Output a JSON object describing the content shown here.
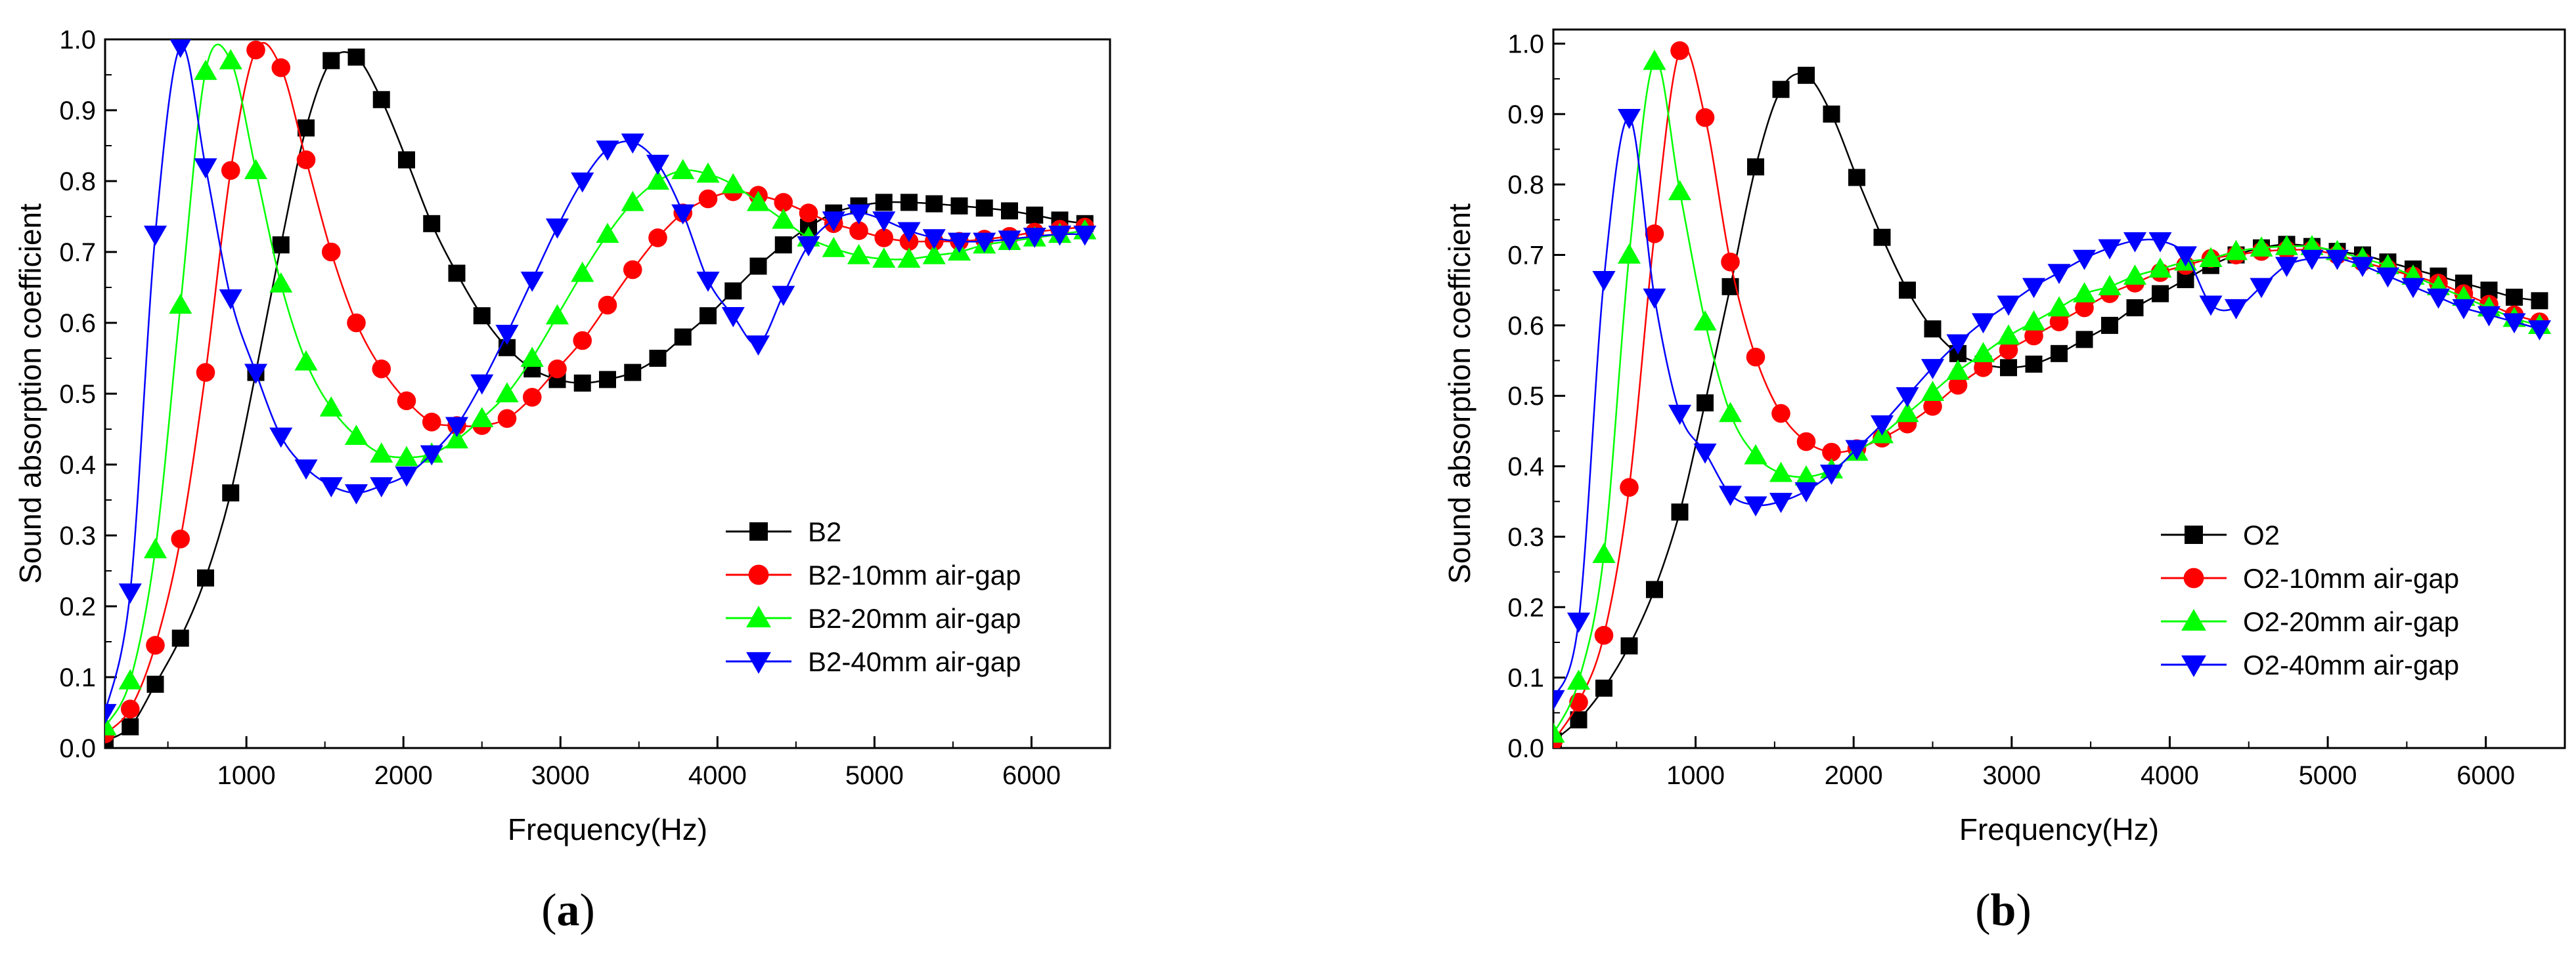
{
  "chart_data": [
    {
      "type": "scatter",
      "panel_label": "a",
      "xlabel": "Frequency(Hz)",
      "ylabel": "Sound absorption coefficient",
      "xlim": [
        100,
        6500
      ],
      "ylim": [
        0,
        1.0
      ],
      "xticks": [
        1000,
        2000,
        3000,
        4000,
        5000,
        6000
      ],
      "yticks": [
        0.0,
        0.1,
        0.2,
        0.3,
        0.4,
        0.5,
        0.6,
        0.7,
        0.8,
        0.9,
        1.0
      ],
      "legend_position": "lower-right",
      "x": [
        100,
        260,
        420,
        580,
        740,
        900,
        1060,
        1220,
        1380,
        1540,
        1700,
        1860,
        2020,
        2180,
        2340,
        2500,
        2660,
        2820,
        2980,
        3140,
        3300,
        3460,
        3620,
        3780,
        3940,
        4100,
        4260,
        4420,
        4580,
        4740,
        4900,
        5060,
        5220,
        5380,
        5540,
        5700,
        5860,
        6020,
        6180,
        6340
      ],
      "series": [
        {
          "name": "B2",
          "color": "#000000",
          "marker": "square",
          "values": [
            0.01,
            0.03,
            0.09,
            0.155,
            0.24,
            0.36,
            0.53,
            0.71,
            0.875,
            0.97,
            0.975,
            0.915,
            0.83,
            0.74,
            0.67,
            0.61,
            0.565,
            0.535,
            0.52,
            0.515,
            0.52,
            0.53,
            0.55,
            0.58,
            0.61,
            0.645,
            0.68,
            0.71,
            0.735,
            0.755,
            0.765,
            0.77,
            0.77,
            0.768,
            0.765,
            0.762,
            0.758,
            0.752,
            0.745,
            0.74
          ]
        },
        {
          "name": "B2-10mm air-gap",
          "color": "#ff0000",
          "marker": "circle",
          "values": [
            0.02,
            0.055,
            0.145,
            0.295,
            0.53,
            0.815,
            0.985,
            0.96,
            0.83,
            0.7,
            0.6,
            0.535,
            0.49,
            0.46,
            0.455,
            0.455,
            0.465,
            0.495,
            0.535,
            0.575,
            0.625,
            0.675,
            0.72,
            0.755,
            0.775,
            0.785,
            0.78,
            0.77,
            0.755,
            0.74,
            0.73,
            0.72,
            0.715,
            0.715,
            0.715,
            0.718,
            0.722,
            0.728,
            0.732,
            0.735
          ]
        },
        {
          "name": "B2-20mm air-gap",
          "color": "#00ff00",
          "marker": "triangle-up",
          "values": [
            0.03,
            0.095,
            0.28,
            0.625,
            0.955,
            0.97,
            0.815,
            0.655,
            0.545,
            0.48,
            0.44,
            0.415,
            0.41,
            0.415,
            0.435,
            0.465,
            0.5,
            0.55,
            0.61,
            0.67,
            0.725,
            0.77,
            0.8,
            0.815,
            0.81,
            0.795,
            0.77,
            0.745,
            0.72,
            0.705,
            0.695,
            0.69,
            0.69,
            0.695,
            0.7,
            0.71,
            0.715,
            0.72,
            0.725,
            0.73
          ]
        },
        {
          "name": "B2-40mm air-gap",
          "color": "#0000ff",
          "marker": "triangle-down",
          "values": [
            0.05,
            0.22,
            0.725,
            0.99,
            0.82,
            0.635,
            0.53,
            0.44,
            0.395,
            0.37,
            0.36,
            0.37,
            0.385,
            0.415,
            0.455,
            0.515,
            0.585,
            0.66,
            0.735,
            0.8,
            0.845,
            0.855,
            0.825,
            0.755,
            0.66,
            0.61,
            0.57,
            0.64,
            0.71,
            0.745,
            0.755,
            0.745,
            0.73,
            0.72,
            0.715,
            0.715,
            0.718,
            0.722,
            0.725,
            0.725
          ]
        }
      ]
    },
    {
      "type": "scatter",
      "panel_label": "b",
      "xlabel": "Frequency(Hz)",
      "ylabel": "Sound absorption coefficient",
      "xlim": [
        100,
        6500
      ],
      "ylim": [
        0,
        1.02
      ],
      "xticks": [
        1000,
        2000,
        3000,
        4000,
        5000,
        6000
      ],
      "yticks": [
        0.0,
        0.1,
        0.2,
        0.3,
        0.4,
        0.5,
        0.6,
        0.7,
        0.8,
        0.9,
        1.0
      ],
      "legend_position": "lower-right",
      "x": [
        100,
        260,
        420,
        580,
        740,
        900,
        1060,
        1220,
        1380,
        1540,
        1700,
        1860,
        2020,
        2180,
        2340,
        2500,
        2660,
        2820,
        2980,
        3140,
        3300,
        3460,
        3620,
        3780,
        3940,
        4100,
        4260,
        4420,
        4580,
        4740,
        4900,
        5060,
        5220,
        5380,
        5540,
        5700,
        5860,
        6020,
        6180,
        6340
      ],
      "series": [
        {
          "name": "O2",
          "color": "#000000",
          "marker": "square",
          "values": [
            0.01,
            0.04,
            0.085,
            0.145,
            0.225,
            0.335,
            0.49,
            0.655,
            0.825,
            0.935,
            0.955,
            0.9,
            0.81,
            0.725,
            0.65,
            0.595,
            0.56,
            0.545,
            0.54,
            0.545,
            0.56,
            0.58,
            0.6,
            0.625,
            0.645,
            0.665,
            0.685,
            0.7,
            0.71,
            0.715,
            0.712,
            0.705,
            0.7,
            0.69,
            0.68,
            0.67,
            0.66,
            0.65,
            0.64,
            0.635
          ]
        },
        {
          "name": "O2-10mm air-gap",
          "color": "#ff0000",
          "marker": "circle",
          "values": [
            0.01,
            0.065,
            0.16,
            0.37,
            0.73,
            0.99,
            0.895,
            0.69,
            0.555,
            0.475,
            0.435,
            0.42,
            0.425,
            0.44,
            0.46,
            0.485,
            0.515,
            0.54,
            0.565,
            0.585,
            0.605,
            0.625,
            0.645,
            0.66,
            0.675,
            0.685,
            0.695,
            0.7,
            0.705,
            0.707,
            0.707,
            0.7,
            0.69,
            0.68,
            0.67,
            0.66,
            0.645,
            0.63,
            0.615,
            0.605
          ]
        },
        {
          "name": "O2-20mm air-gap",
          "color": "#00ff00",
          "marker": "triangle-up",
          "values": [
            0.02,
            0.095,
            0.275,
            0.7,
            0.975,
            0.79,
            0.605,
            0.475,
            0.415,
            0.39,
            0.385,
            0.395,
            0.42,
            0.445,
            0.475,
            0.505,
            0.535,
            0.56,
            0.585,
            0.605,
            0.625,
            0.645,
            0.655,
            0.67,
            0.68,
            0.69,
            0.695,
            0.705,
            0.71,
            0.712,
            0.712,
            0.705,
            0.695,
            0.685,
            0.67,
            0.655,
            0.64,
            0.625,
            0.61,
            0.6
          ]
        },
        {
          "name": "O2-40mm air-gap",
          "color": "#0000ff",
          "marker": "triangle-down",
          "values": [
            0.07,
            0.18,
            0.665,
            0.895,
            0.64,
            0.475,
            0.42,
            0.36,
            0.345,
            0.35,
            0.365,
            0.39,
            0.425,
            0.46,
            0.5,
            0.54,
            0.575,
            0.605,
            0.63,
            0.655,
            0.675,
            0.695,
            0.71,
            0.72,
            0.72,
            0.7,
            0.63,
            0.625,
            0.655,
            0.685,
            0.695,
            0.695,
            0.685,
            0.67,
            0.655,
            0.64,
            0.625,
            0.615,
            0.605,
            0.595
          ]
        }
      ]
    }
  ]
}
